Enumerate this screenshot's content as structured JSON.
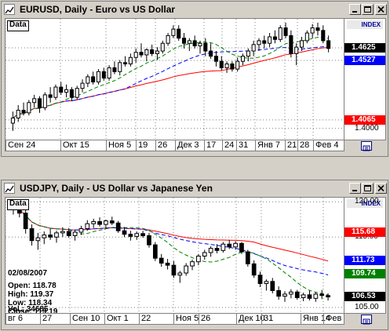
{
  "windows": [
    {
      "title": "EURUSD, Daily - Euro vs US Dollar",
      "data_tag": "Data",
      "index_label": "INDEX",
      "price_ticks": [
        "1.4625",
        "1.4527",
        "1.4065",
        "1.4000"
      ],
      "price_ticks_raw": [
        1.4625,
        1.4527,
        1.4065,
        1.4
      ],
      "ylim": [
        1.39,
        1.485
      ],
      "labels": [
        {
          "text": "1.4625",
          "value": 1.4625,
          "bg": "#000000",
          "fg": "#ffffff"
        },
        {
          "text": "1.4527",
          "value": 1.4527,
          "bg": "#0000ff",
          "fg": "#ffffff"
        },
        {
          "text": "1.4065",
          "value": 1.4065,
          "bg": "#ff0000",
          "fg": "#ffffff"
        }
      ],
      "xticks": [
        "Сен 24",
        "Окт 15",
        "Ноя 5",
        "19",
        "26",
        "Дек 3",
        "17",
        "24",
        "31",
        "Янв 7",
        "21",
        "28",
        "Фев 4"
      ],
      "candles": [
        [
          1.404,
          1.413,
          1.398,
          1.408
        ],
        [
          1.408,
          1.418,
          1.405,
          1.414
        ],
        [
          1.414,
          1.42,
          1.41,
          1.412
        ],
        [
          1.412,
          1.422,
          1.41,
          1.42
        ],
        [
          1.42,
          1.426,
          1.416,
          1.423
        ],
        [
          1.423,
          1.425,
          1.412,
          1.416
        ],
        [
          1.416,
          1.428,
          1.414,
          1.426
        ],
        [
          1.426,
          1.432,
          1.42,
          1.424
        ],
        [
          1.424,
          1.434,
          1.422,
          1.432
        ],
        [
          1.432,
          1.436,
          1.426,
          1.428
        ],
        [
          1.428,
          1.434,
          1.424,
          1.43
        ],
        [
          1.43,
          1.432,
          1.421,
          1.424
        ],
        [
          1.424,
          1.433,
          1.422,
          1.431
        ],
        [
          1.431,
          1.438,
          1.428,
          1.435
        ],
        [
          1.435,
          1.442,
          1.432,
          1.44
        ],
        [
          1.44,
          1.444,
          1.434,
          1.436
        ],
        [
          1.436,
          1.446,
          1.434,
          1.444
        ],
        [
          1.444,
          1.447,
          1.437,
          1.439
        ],
        [
          1.439,
          1.449,
          1.437,
          1.447
        ],
        [
          1.447,
          1.452,
          1.442,
          1.444
        ],
        [
          1.444,
          1.453,
          1.441,
          1.451
        ],
        [
          1.451,
          1.456,
          1.448,
          1.45
        ],
        [
          1.45,
          1.458,
          1.448,
          1.455
        ],
        [
          1.455,
          1.462,
          1.451,
          1.459
        ],
        [
          1.459,
          1.466,
          1.455,
          1.457
        ],
        [
          1.457,
          1.462,
          1.452,
          1.461
        ],
        [
          1.461,
          1.465,
          1.456,
          1.458
        ],
        [
          1.458,
          1.463,
          1.453,
          1.46
        ],
        [
          1.46,
          1.468,
          1.458,
          1.466
        ],
        [
          1.466,
          1.474,
          1.464,
          1.472
        ],
        [
          1.472,
          1.48,
          1.47,
          1.477
        ],
        [
          1.477,
          1.48,
          1.468,
          1.47
        ],
        [
          1.47,
          1.474,
          1.462,
          1.466
        ],
        [
          1.466,
          1.47,
          1.46,
          1.468
        ],
        [
          1.468,
          1.472,
          1.462,
          1.464
        ],
        [
          1.464,
          1.468,
          1.458,
          1.466
        ],
        [
          1.466,
          1.47,
          1.456,
          1.46
        ],
        [
          1.46,
          1.466,
          1.454,
          1.456
        ],
        [
          1.456,
          1.46,
          1.448,
          1.452
        ],
        [
          1.452,
          1.456,
          1.445,
          1.447
        ],
        [
          1.447,
          1.452,
          1.443,
          1.45
        ],
        [
          1.45,
          1.452,
          1.444,
          1.446
        ],
        [
          1.446,
          1.455,
          1.444,
          1.452
        ],
        [
          1.452,
          1.458,
          1.449,
          1.456
        ],
        [
          1.456,
          1.462,
          1.452,
          1.46
        ],
        [
          1.46,
          1.468,
          1.456,
          1.465
        ],
        [
          1.465,
          1.47,
          1.46,
          1.468
        ],
        [
          1.468,
          1.472,
          1.462,
          1.466
        ],
        [
          1.466,
          1.474,
          1.463,
          1.471
        ],
        [
          1.471,
          1.476,
          1.466,
          1.469
        ],
        [
          1.469,
          1.48,
          1.467,
          1.478
        ],
        [
          1.478,
          1.482,
          1.47,
          1.472
        ],
        [
          1.472,
          1.476,
          1.455,
          1.458
        ],
        [
          1.458,
          1.466,
          1.449,
          1.463
        ],
        [
          1.463,
          1.471,
          1.46,
          1.468
        ],
        [
          1.468,
          1.476,
          1.466,
          1.474
        ],
        [
          1.474,
          1.481,
          1.47,
          1.478
        ],
        [
          1.478,
          1.482,
          1.472,
          1.476
        ],
        [
          1.476,
          1.48,
          1.466,
          1.468
        ],
        [
          1.468,
          1.472,
          1.459,
          1.462
        ]
      ]
    },
    {
      "title": "USDJPY, Daily - US Dollar vs Japanese Yen",
      "data_tag": "Data",
      "index_label": "INDEX",
      "price_ticks": [
        "120.00",
        "115.00",
        "105.00"
      ],
      "price_ticks_raw": [
        120.0,
        115.0,
        105.0
      ],
      "ylim": [
        104.0,
        120.6
      ],
      "labels": [
        {
          "text": "115.68",
          "value": 115.68,
          "bg": "#ff0000",
          "fg": "#ffffff"
        },
        {
          "text": "111.73",
          "value": 111.73,
          "bg": "#0000ff",
          "fg": "#ffffff"
        },
        {
          "text": "109.74",
          "value": 109.74,
          "bg": "#008000",
          "fg": "#ffffff"
        },
        {
          "text": "106.53",
          "value": 106.53,
          "bg": "#000000",
          "fg": "#ffffff"
        }
      ],
      "xticks": [
        "вг 6",
        "27",
        "Сен 10",
        "Окт 1",
        "22",
        "Ноя 5",
        "26",
        "Дек 10",
        "31",
        "Янв 14",
        "Фев 4"
      ],
      "info": {
        "date": "02/08/2007",
        "open": "Open: 118.78",
        "high": "High: 119.37",
        "low": "Low: 118.34",
        "close": "Close: 119.19",
        "vol": "Vol.: 34685"
      },
      "candles": [
        [
          119.0,
          120.3,
          118.2,
          119.5
        ],
        [
          119.5,
          119.9,
          117.8,
          118.4
        ],
        [
          118.4,
          118.9,
          115.5,
          116.2
        ],
        [
          116.2,
          116.8,
          113.8,
          114.5
        ],
        [
          114.5,
          115.6,
          113.2,
          114.9
        ],
        [
          114.9,
          115.8,
          114.0,
          115.3
        ],
        [
          115.3,
          116.2,
          114.6,
          115.0
        ],
        [
          115.0,
          115.9,
          114.2,
          115.6
        ],
        [
          115.6,
          116.4,
          115.0,
          115.8
        ],
        [
          115.8,
          116.3,
          114.9,
          115.2
        ],
        [
          115.2,
          116.0,
          114.5,
          115.7
        ],
        [
          115.7,
          116.6,
          115.3,
          116.2
        ],
        [
          116.2,
          117.4,
          115.9,
          116.9
        ],
        [
          116.9,
          117.6,
          116.3,
          117.2
        ],
        [
          117.2,
          117.8,
          116.5,
          116.8
        ],
        [
          116.8,
          117.5,
          116.2,
          117.3
        ],
        [
          117.3,
          117.9,
          116.7,
          117.0
        ],
        [
          117.0,
          117.3,
          115.6,
          115.9
        ],
        [
          115.9,
          116.4,
          115.0,
          115.4
        ],
        [
          115.4,
          115.9,
          114.5,
          115.1
        ],
        [
          115.1,
          115.8,
          114.6,
          115.5
        ],
        [
          115.5,
          115.9,
          114.9,
          115.2
        ],
        [
          115.2,
          115.6,
          113.5,
          113.9
        ],
        [
          113.9,
          114.3,
          111.6,
          112.0
        ],
        [
          112.0,
          112.6,
          110.8,
          111.3
        ],
        [
          111.3,
          111.9,
          110.4,
          111.0
        ],
        [
          111.0,
          111.6,
          109.2,
          109.6
        ],
        [
          109.6,
          110.2,
          108.5,
          109.9
        ],
        [
          109.9,
          111.3,
          109.5,
          110.9
        ],
        [
          110.9,
          111.8,
          110.3,
          111.5
        ],
        [
          111.5,
          112.6,
          111.0,
          112.3
        ],
        [
          112.3,
          113.2,
          111.8,
          112.8
        ],
        [
          112.8,
          113.7,
          112.2,
          113.4
        ],
        [
          113.4,
          114.0,
          112.7,
          113.1
        ],
        [
          113.1,
          114.3,
          112.8,
          114.0
        ],
        [
          114.0,
          114.6,
          113.3,
          113.6
        ],
        [
          113.6,
          114.4,
          113.2,
          114.1
        ],
        [
          114.1,
          114.3,
          112.6,
          112.9
        ],
        [
          112.9,
          113.2,
          110.8,
          111.2
        ],
        [
          111.2,
          111.7,
          109.2,
          109.6
        ],
        [
          109.6,
          110.1,
          107.9,
          108.4
        ],
        [
          108.4,
          109.0,
          107.4,
          108.7
        ],
        [
          108.7,
          109.2,
          107.0,
          107.4
        ],
        [
          107.4,
          108.0,
          106.1,
          106.6
        ],
        [
          106.6,
          107.3,
          105.8,
          106.9
        ],
        [
          106.9,
          107.6,
          106.3,
          107.2
        ],
        [
          107.2,
          107.5,
          106.1,
          106.4
        ],
        [
          106.4,
          107.1,
          105.9,
          106.8
        ],
        [
          106.8,
          107.4,
          106.0,
          106.3
        ],
        [
          106.3,
          107.2,
          105.8,
          106.9
        ],
        [
          106.9,
          107.5,
          106.2,
          106.7
        ],
        [
          106.7,
          107.0,
          106.0,
          106.5
        ]
      ]
    }
  ],
  "colors": {
    "bull": "#ffffff",
    "bear": "#000000",
    "ma_short": "#008000",
    "ma_mid": "#0000ff",
    "ma_long": "#ff0000",
    "grid": "#808080"
  }
}
